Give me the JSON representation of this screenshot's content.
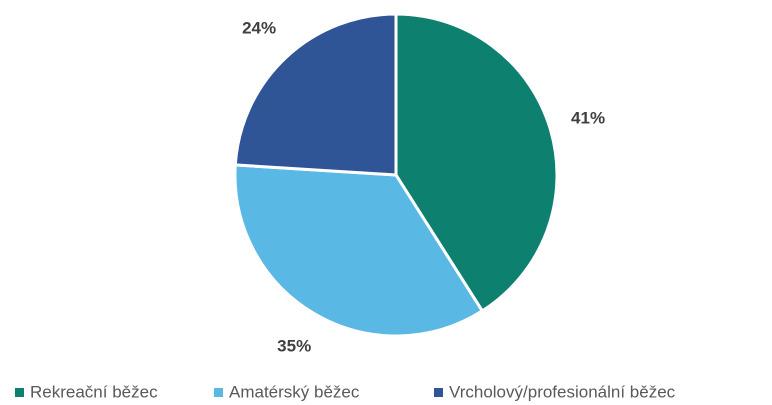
{
  "chart_data": {
    "type": "pie",
    "categories": [
      "Rekreační běžec",
      "Amatérský běžec",
      "Vrcholový/profesionální běžec"
    ],
    "values": [
      41,
      35,
      24
    ],
    "value_labels": [
      "41%",
      "35%",
      "24%"
    ],
    "colors": [
      "#0e8070",
      "#5ab8e4",
      "#2f5597"
    ],
    "legend": "bottom"
  }
}
